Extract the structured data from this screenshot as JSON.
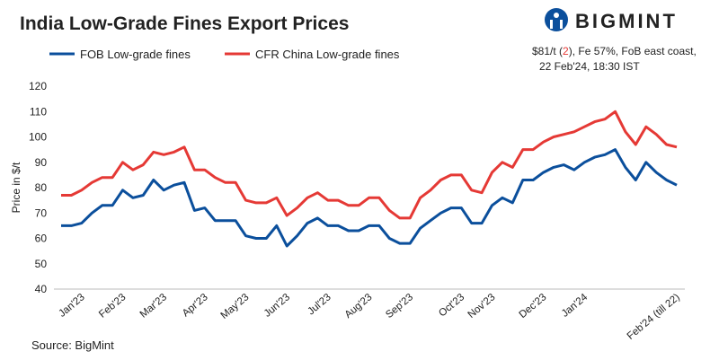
{
  "chart_data": {
    "type": "line",
    "title": "India Low-Grade Fines Export Prices",
    "brand": "BIGMINT",
    "note": {
      "price": "$81/t (",
      "change": "2",
      "rest": "), Fe 57%, FoB east coast,",
      "date": "22 Feb'24, 18:30 IST"
    },
    "y_label": "Price in $/t",
    "source": "Source: BigMint",
    "ylim": [
      40,
      120
    ],
    "yticks": [
      40,
      50,
      60,
      70,
      80,
      90,
      100,
      110,
      120
    ],
    "grid": false,
    "categories": [
      null,
      null,
      "Jan'23",
      null,
      null,
      null,
      "Feb'23",
      null,
      null,
      null,
      "Mar'23",
      null,
      null,
      null,
      "Apr'23",
      null,
      null,
      null,
      "May'23",
      null,
      null,
      null,
      "Jun'23",
      null,
      null,
      null,
      "Jul'23",
      null,
      null,
      null,
      "Aug'23",
      null,
      null,
      null,
      "Sep'23",
      null,
      null,
      null,
      null,
      "Oct'23",
      null,
      null,
      "Nov'23",
      null,
      null,
      null,
      null,
      "Dec'23",
      null,
      null,
      null,
      "Jan'24",
      null,
      null,
      null,
      null,
      null,
      null,
      null,
      null,
      "Feb'24 (till 22)"
    ],
    "series": [
      {
        "name": "FOB Low-grade fines",
        "color": "#0b4f9c",
        "values": [
          65,
          65,
          66,
          70,
          73,
          73,
          79,
          76,
          77,
          83,
          79,
          81,
          82,
          71,
          72,
          67,
          67,
          67,
          61,
          60,
          60,
          65,
          57,
          61,
          66,
          68,
          65,
          65,
          63,
          63,
          65,
          65,
          60,
          58,
          58,
          64,
          67,
          70,
          72,
          72,
          66,
          66,
          73,
          76,
          74,
          83,
          83,
          86,
          88,
          89,
          87,
          90,
          92,
          93,
          95,
          88,
          83,
          90,
          86,
          83,
          81
        ]
      },
      {
        "name": "CFR China Low-grade fines",
        "color": "#e53935",
        "values": [
          77,
          77,
          79,
          82,
          84,
          84,
          90,
          87,
          89,
          94,
          93,
          94,
          96,
          87,
          87,
          84,
          82,
          82,
          75,
          74,
          74,
          76,
          69,
          72,
          76,
          78,
          75,
          75,
          73,
          73,
          76,
          76,
          71,
          68,
          68,
          76,
          79,
          83,
          85,
          85,
          79,
          78,
          86,
          90,
          88,
          95,
          95,
          98,
          100,
          101,
          102,
          104,
          106,
          107,
          110,
          102,
          97,
          104,
          101,
          97,
          96
        ]
      }
    ]
  }
}
